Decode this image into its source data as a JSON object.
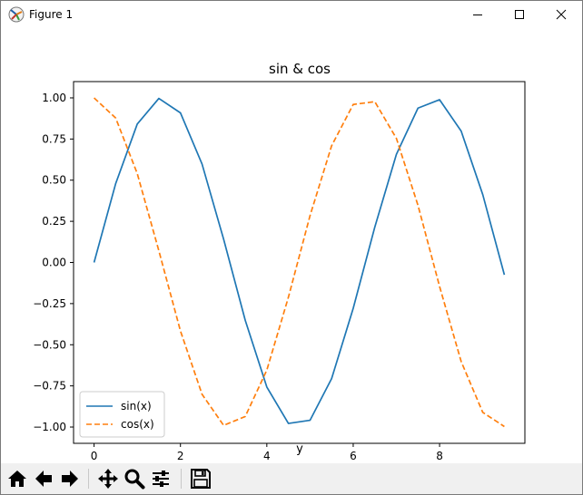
{
  "window": {
    "title": "Figure 1",
    "icon": "matplotlib-figure-icon",
    "controls": [
      "minimize",
      "maximize",
      "close"
    ]
  },
  "chart_data": {
    "type": "line",
    "title": "sin & cos",
    "xlabel": "y",
    "ylabel": "",
    "xlim": [
      -0.475,
      9.975
    ],
    "ylim": [
      -1.099,
      1.099
    ],
    "xticks": [
      "0",
      "2",
      "4",
      "6",
      "8"
    ],
    "yticks": [
      "−1.00",
      "−0.75",
      "−0.50",
      "−0.25",
      "0.00",
      "0.25",
      "0.50",
      "0.75",
      "1.00"
    ],
    "grid": false,
    "legend_position": "lower left",
    "x": [
      0,
      0.5,
      1,
      1.5,
      2,
      2.5,
      3,
      3.5,
      4,
      4.5,
      5,
      5.5,
      6,
      6.5,
      7,
      7.5,
      8,
      8.5,
      9,
      9.5
    ],
    "series": [
      {
        "name": "sin(x)",
        "color": "#1f77b4",
        "linestyle": "solid",
        "values": [
          0,
          0.479,
          0.841,
          0.997,
          0.909,
          0.598,
          0.141,
          -0.351,
          -0.757,
          -0.978,
          -0.959,
          -0.706,
          -0.279,
          0.215,
          0.657,
          0.938,
          0.989,
          0.798,
          0.412,
          -0.075
        ]
      },
      {
        "name": "cos(x)",
        "color": "#ff7f0e",
        "linestyle": "dashed",
        "values": [
          1,
          0.878,
          0.54,
          0.071,
          -0.416,
          -0.801,
          -0.99,
          -0.936,
          -0.654,
          -0.211,
          0.284,
          0.709,
          0.96,
          0.977,
          0.754,
          0.347,
          -0.146,
          -0.602,
          -0.911,
          -0.997
        ]
      }
    ]
  },
  "toolbar": {
    "buttons": [
      {
        "name": "home-icon",
        "label": "Home"
      },
      {
        "name": "back-arrow-icon",
        "label": "Back"
      },
      {
        "name": "forward-arrow-icon",
        "label": "Forward"
      },
      {
        "name": "pan-icon",
        "label": "Pan"
      },
      {
        "name": "zoom-icon",
        "label": "Zoom"
      },
      {
        "name": "configure-subplots-icon",
        "label": "Subplots"
      },
      {
        "name": "save-icon",
        "label": "Save"
      }
    ]
  }
}
